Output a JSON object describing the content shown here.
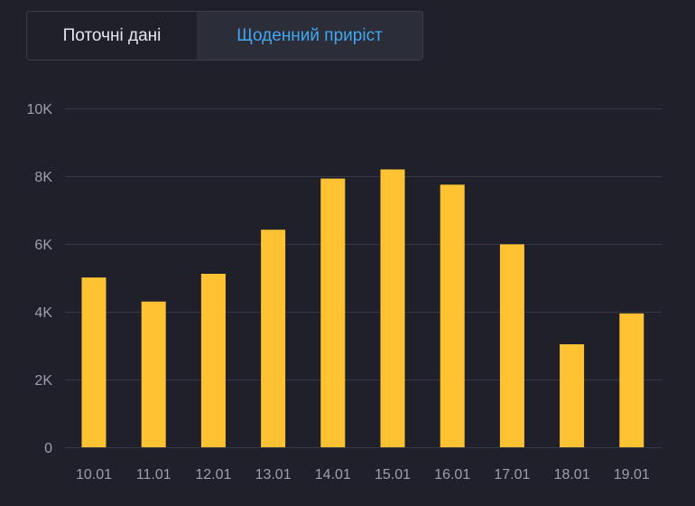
{
  "tabs": {
    "current_label": "Поточні дані",
    "daily_label": "Щоденний приріст",
    "active": "daily"
  },
  "colors": {
    "background": "#1f2029",
    "bar": "#ffc233",
    "grid": "#363845",
    "tick_text": "#9c9fae",
    "active_tab_text": "#43a7f0"
  },
  "chart_data": {
    "type": "bar",
    "categories": [
      "10.01",
      "11.01",
      "12.01",
      "13.01",
      "14.01",
      "15.01",
      "16.01",
      "17.01",
      "18.01",
      "19.01"
    ],
    "values": [
      5010,
      4300,
      5120,
      6420,
      7930,
      8200,
      7750,
      5990,
      3040,
      3950
    ],
    "ylim": [
      0,
      10000
    ],
    "yticks": [
      0,
      2000,
      4000,
      6000,
      8000,
      10000
    ],
    "ytick_labels": [
      "0",
      "2K",
      "4K",
      "6K",
      "8K",
      "10K"
    ],
    "grid": true,
    "title": "",
    "xlabel": "",
    "ylabel": ""
  }
}
